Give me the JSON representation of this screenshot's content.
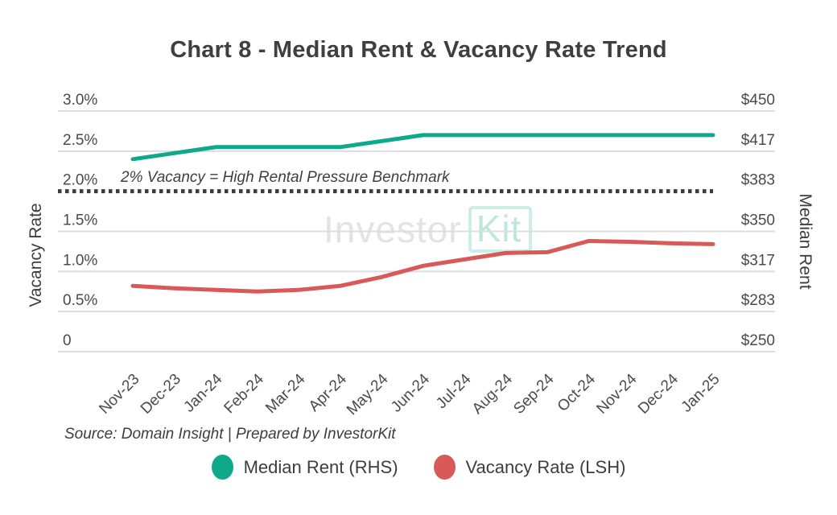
{
  "title": "Chart 8 - Median Rent & Vacancy Rate Trend",
  "watermark": {
    "part1": "Investor",
    "part2": "Kit"
  },
  "benchmark": {
    "label": "2% Vacancy = High Rental Pressure Benchmark",
    "value": 2.0
  },
  "source_note": "Source: Domain Insight | Prepared by InvestorKit",
  "left_axis": {
    "title": "Vacancy Rate"
  },
  "right_axis": {
    "title": "Median Rent"
  },
  "colors": {
    "median_rent_line": "#0ea98b",
    "vacancy_line": "#d95858",
    "benchmark_line": "#3b3b3b",
    "gridline": "#dedede",
    "tick_text": "#4a4a4a",
    "title_text": "#3f3f3f"
  },
  "chart_data": {
    "type": "line",
    "categories": [
      "Nov-23",
      "Dec-23",
      "Jan-24",
      "Feb-24",
      "Mar-24",
      "Apr-24",
      "May-24",
      "Jun-24",
      "Jul-24",
      "Aug-24",
      "Sep-24",
      "Oct-24",
      "Nov-24",
      "Dec-24",
      "Jan-25"
    ],
    "series": [
      {
        "name": "Median Rent (RHS)",
        "axis": "right",
        "color": "#0ea98b",
        "values": [
          410,
          415,
          420,
          420,
          420,
          420,
          425,
          430,
          430,
          430,
          430,
          430,
          430,
          430,
          430
        ]
      },
      {
        "name": "Vacancy Rate (LSH)",
        "axis": "left",
        "color": "#d95858",
        "values": [
          0.82,
          0.79,
          0.77,
          0.75,
          0.77,
          0.82,
          0.93,
          1.07,
          1.15,
          1.23,
          1.24,
          1.38,
          1.37,
          1.35,
          1.34
        ]
      }
    ],
    "left_axis": {
      "label": "Vacancy Rate",
      "lim": [
        0,
        3
      ],
      "tick_values": [
        3.0,
        2.5,
        2.0,
        1.5,
        1.0,
        0.5,
        0
      ],
      "tick_labels": [
        "3.0%",
        "2.5%",
        "2.0%",
        "1.5%",
        "1.0%",
        "0.5%",
        "0"
      ]
    },
    "right_axis": {
      "label": "Median Rent",
      "lim": [
        250,
        450
      ],
      "tick_values": [
        450,
        416.67,
        383.33,
        350,
        316.67,
        283.33,
        250
      ],
      "tick_labels": [
        "$450",
        "$417",
        "$383",
        "$350",
        "$317",
        "$283",
        "$250"
      ]
    },
    "benchmark_line": {
      "value": 2.0,
      "label": "2% Vacancy = High Rental Pressure Benchmark",
      "style": "dotted"
    },
    "grid": true,
    "legend_position": "bottom"
  }
}
